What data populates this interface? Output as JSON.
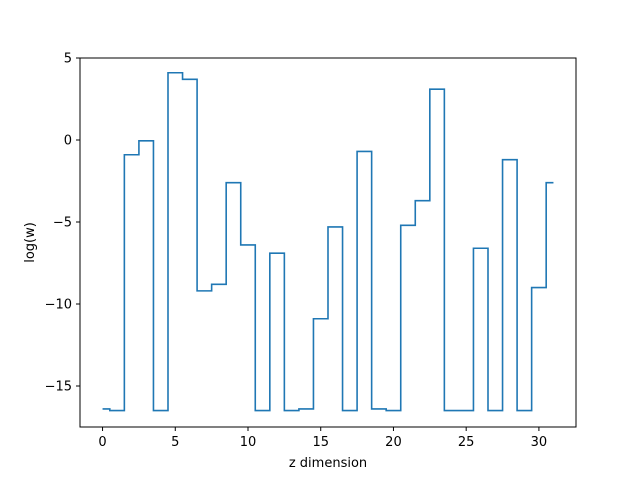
{
  "chart_data": {
    "type": "line",
    "drawstyle": "steps-mid",
    "title": "",
    "xlabel": "z dimension",
    "ylabel": "log(w)",
    "xlim": [
      -1.55,
      32.55
    ],
    "ylim": [
      -17.5,
      5.0
    ],
    "xticks": [
      0,
      5,
      10,
      15,
      20,
      25,
      30
    ],
    "xtick_labels": [
      "0",
      "5",
      "10",
      "15",
      "20",
      "25",
      "30"
    ],
    "yticks": [
      -15,
      -10,
      -5,
      0,
      5
    ],
    "ytick_labels": [
      "−15",
      "−10",
      "−5",
      "0",
      "5"
    ],
    "grid": false,
    "legend": "none",
    "color": "#1f77b4",
    "series": [
      {
        "x": [
          0,
          1,
          2,
          3,
          4,
          5,
          6,
          7,
          8,
          9,
          10,
          11,
          12,
          13,
          14,
          15,
          16,
          17,
          18,
          19,
          20,
          21,
          22,
          23,
          24,
          25,
          26,
          27,
          28,
          29,
          30,
          31
        ],
        "values": [
          -16.4,
          -16.5,
          -0.9,
          -0.05,
          -16.5,
          4.1,
          3.7,
          -9.2,
          -8.8,
          -2.6,
          -6.4,
          -16.5,
          -6.9,
          -16.5,
          -16.4,
          -10.9,
          -5.3,
          -16.5,
          -0.7,
          -16.4,
          -16.5,
          -5.2,
          -3.7,
          3.1,
          -16.5,
          -16.5,
          -6.6,
          -16.5,
          -1.2,
          -16.5,
          -9.0,
          -2.6
        ]
      }
    ]
  }
}
